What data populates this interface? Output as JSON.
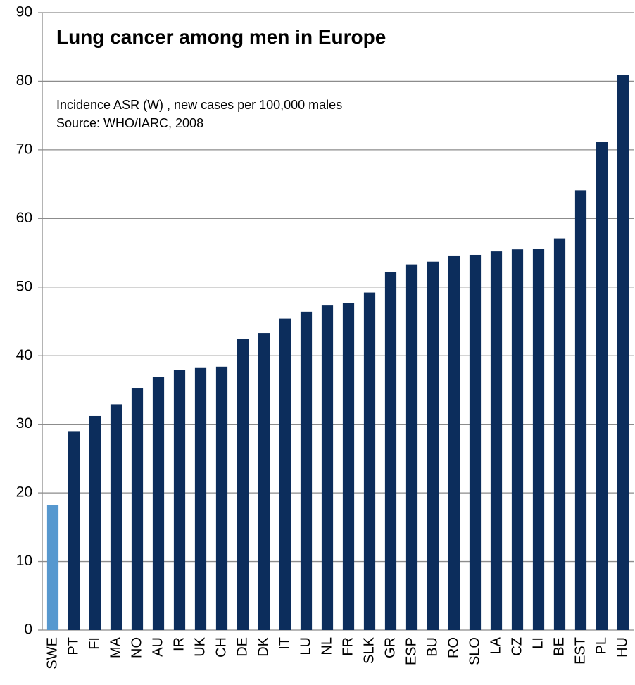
{
  "chart_data": {
    "type": "bar",
    "title": "Lung cancer among men in Europe",
    "subtitle": [
      "Incidence ASR (W) , new cases per 100,000 males",
      "Source: WHO/IARC, 2008"
    ],
    "categories": [
      "SWE",
      "PT",
      "FI",
      "MA",
      "NO",
      "AU",
      "IR",
      "UK",
      "CH",
      "DE",
      "DK",
      "IT",
      "LU",
      "NL",
      "FR",
      "SLK",
      "GR",
      "ESP",
      "BU",
      "RO",
      "SLO",
      "LA",
      "CZ",
      "LI",
      "BE",
      "EST",
      "PL",
      "HU"
    ],
    "values": [
      18.2,
      29,
      31.2,
      32.9,
      35.3,
      36.9,
      37.9,
      38.2,
      38.4,
      42.4,
      43.3,
      45.4,
      46.4,
      47.4,
      47.7,
      49.2,
      52.2,
      53.3,
      53.7,
      54.6,
      54.7,
      55.2,
      55.5,
      55.6,
      57.1,
      64.1,
      71.2,
      80.9
    ],
    "colors": [
      "#5698cf",
      "#0c2d5c",
      "#0c2d5c",
      "#0c2d5c",
      "#0c2d5c",
      "#0c2d5c",
      "#0c2d5c",
      "#0c2d5c",
      "#0c2d5c",
      "#0c2d5c",
      "#0c2d5c",
      "#0c2d5c",
      "#0c2d5c",
      "#0c2d5c",
      "#0c2d5c",
      "#0c2d5c",
      "#0c2d5c",
      "#0c2d5c",
      "#0c2d5c",
      "#0c2d5c",
      "#0c2d5c",
      "#0c2d5c",
      "#0c2d5c",
      "#0c2d5c",
      "#0c2d5c",
      "#0c2d5c",
      "#0c2d5c",
      "#0c2d5c"
    ],
    "ylim": [
      0,
      90
    ],
    "yticks": [
      0,
      10,
      20,
      30,
      40,
      50,
      60,
      70,
      80,
      90
    ],
    "grid": true
  }
}
